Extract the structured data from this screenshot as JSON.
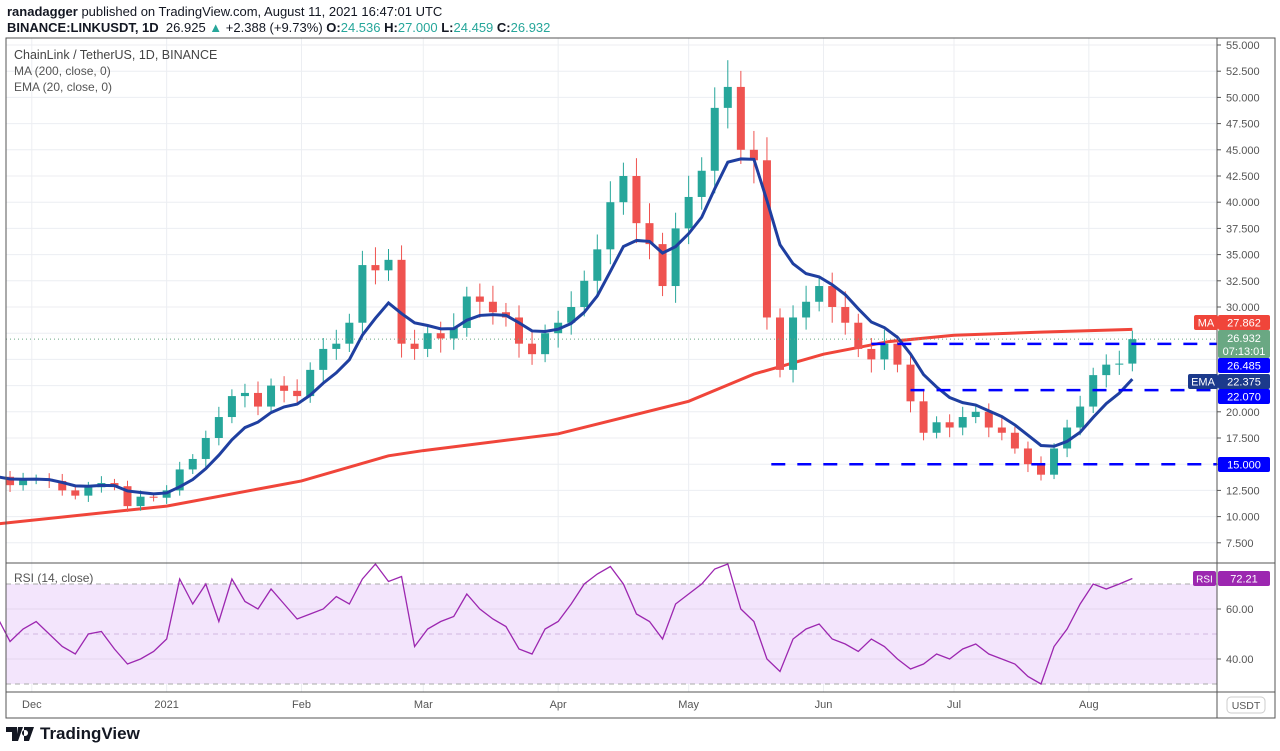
{
  "header": {
    "author": "ranadagger",
    "published_text": "published on TradingView.com, August 11, 2021 16:47:01 UTC",
    "symbol": "BINANCE:LINKUSDT, 1D",
    "last": "26.925",
    "change": "+2.388 (+9.73%)",
    "o_label": "O:",
    "o": "24.536",
    "h_label": "H:",
    "h": "27.000",
    "l_label": "L:",
    "l": "24.459",
    "c_label": "C:",
    "c": "26.932"
  },
  "legend": {
    "title": "ChainLink / TetherUS, 1D, BINANCE",
    "ma": "MA (200, close, 0)",
    "ema": "EMA (20, close, 0)",
    "rsi": "RSI (14, close)"
  },
  "brand": "TradingView",
  "colors": {
    "up": "#26a69a",
    "down": "#ef5350",
    "ma": "#f0453a",
    "ema": "#1f3fa0",
    "rsi": "#9c27b0",
    "level": "#0000ff",
    "price_tag": "#6aa883"
  },
  "chart_data": {
    "type": "candlestick",
    "title": "ChainLink / TetherUS, 1D, BINANCE",
    "start_date": "2020-11-23",
    "step_days": 3,
    "closes": [
      13.8,
      13.0,
      13.5,
      13.6,
      13.4,
      12.5,
      12.0,
      12.8,
      13.2,
      12.9,
      11.0,
      11.9,
      11.8,
      12.5,
      14.5,
      15.5,
      17.5,
      19.5,
      21.5,
      21.8,
      20.5,
      22.5,
      22.0,
      21.5,
      24.0,
      26.0,
      26.5,
      28.5,
      34.0,
      33.5,
      34.5,
      26.5,
      26.0,
      27.5,
      27.0,
      28.0,
      31.0,
      30.5,
      29.5,
      29.0,
      26.5,
      25.5,
      27.5,
      28.5,
      30.0,
      32.5,
      35.5,
      40.0,
      42.5,
      38.0,
      36.0,
      32.0,
      37.5,
      40.5,
      43.0,
      49.0,
      51.0,
      45.0,
      44.0,
      29.0,
      24.0,
      29.0,
      30.5,
      32.0,
      30.0,
      28.5,
      26.0,
      25.0,
      26.5,
      24.5,
      21.0,
      18.0,
      19.0,
      18.5,
      19.5,
      20.0,
      18.5,
      18.0,
      16.5,
      15.0,
      14.0,
      16.5,
      18.5,
      20.5,
      23.5,
      24.5,
      24.6,
      26.932
    ],
    "ma200": [
      [
        0,
        9.3
      ],
      [
        39,
        11.0
      ],
      [
        70,
        13.4
      ],
      [
        90,
        15.8
      ],
      [
        98,
        16.3
      ],
      [
        129,
        17.9
      ],
      [
        159,
        21.0
      ],
      [
        174,
        23.6
      ],
      [
        190,
        25.5
      ],
      [
        205,
        26.7
      ],
      [
        220,
        27.3
      ],
      [
        240,
        27.6
      ],
      [
        261,
        27.862
      ]
    ],
    "rsi": [
      57,
      47,
      52,
      55,
      50,
      45,
      42,
      50,
      51,
      44,
      38,
      40,
      43,
      48,
      72,
      62,
      70,
      55,
      72,
      63,
      60,
      68,
      62,
      56,
      58,
      60,
      65,
      62,
      72,
      78,
      71,
      73,
      45,
      52,
      55,
      57,
      66,
      60,
      56,
      53,
      44,
      42,
      52,
      55,
      62,
      70,
      74,
      77,
      70,
      58,
      55,
      48,
      62,
      66,
      70,
      76,
      78,
      60,
      55,
      40,
      35,
      48,
      52,
      54,
      48,
      46,
      43,
      48,
      45,
      40,
      36,
      38,
      42,
      40,
      44,
      46,
      42,
      40,
      38,
      33,
      30,
      45,
      52,
      62,
      70,
      68,
      70,
      72.21
    ],
    "y_ticks": [
      "55.000",
      "52.500",
      "50.000",
      "47.500",
      "45.000",
      "42.500",
      "40.000",
      "37.500",
      "35.000",
      "32.500",
      "30.000",
      "20.000",
      "17.500",
      "15.000",
      "12.500",
      "10.000",
      "7.500"
    ],
    "ylim": [
      7.5,
      55
    ],
    "y_unit": "USDT",
    "rsi_ticks": [
      "60.00",
      "40.00"
    ],
    "rsi_bands": [
      30,
      70
    ],
    "x_ticks": [
      {
        "label": "Dec",
        "day": 8
      },
      {
        "label": "2021",
        "day": 39
      },
      {
        "label": "Feb",
        "day": 70
      },
      {
        "label": "Mar",
        "day": 98
      },
      {
        "label": "Apr",
        "day": 129
      },
      {
        "label": "May",
        "day": 159
      },
      {
        "label": "Jun",
        "day": 190
      },
      {
        "label": "Jul",
        "day": 220
      },
      {
        "label": "Aug",
        "day": 251
      }
    ],
    "levels": [
      {
        "value": 26.485,
        "label": "26.485",
        "start_day": 201
      },
      {
        "value": 22.07,
        "label": "22.070",
        "start_day": 210
      },
      {
        "value": 15.0,
        "label": "15.000",
        "start_day": 178
      }
    ],
    "tags": {
      "ma_label": "MA",
      "ma_value": "27.862",
      "last_value": "26.932",
      "countdown": "07:13:01",
      "ema_label": "EMA",
      "ema_value": "22.375",
      "rsi_label": "RSI",
      "rsi_value": "72.21"
    }
  }
}
